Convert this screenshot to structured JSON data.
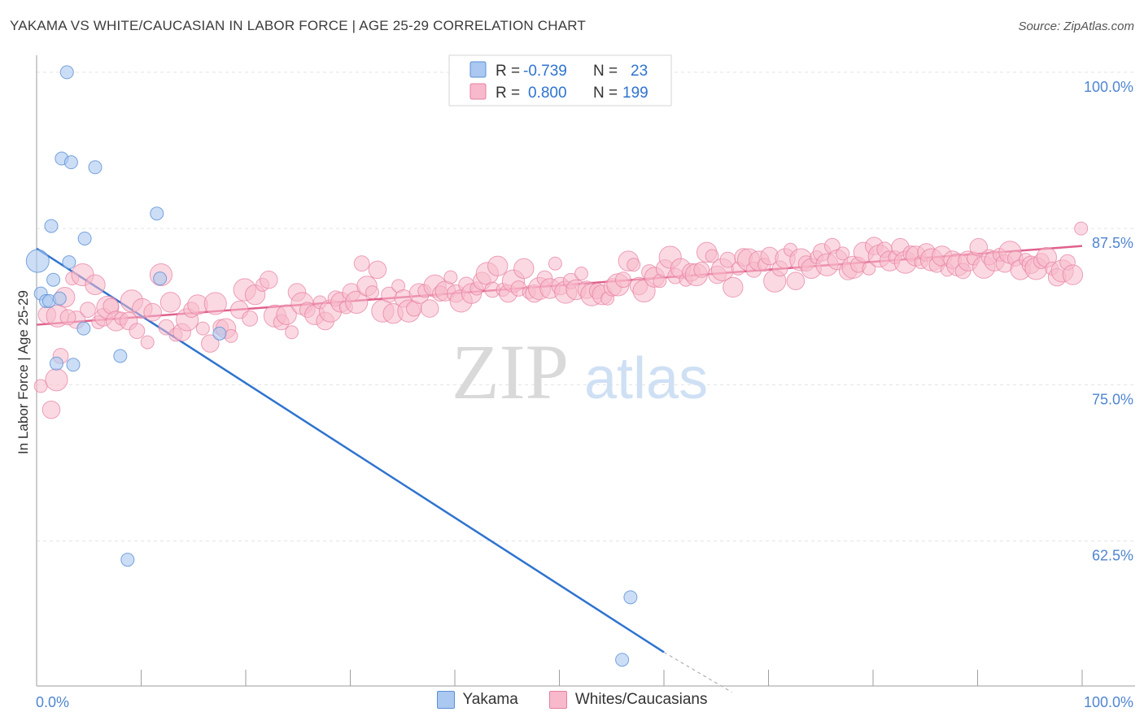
{
  "header": {
    "title": "YAKAMA VS WHITE/CAUCASIAN IN LABOR FORCE | AGE 25-29 CORRELATION CHART",
    "source": "Source: ZipAtlas.com"
  },
  "watermark": {
    "zip": "ZIP",
    "atlas": "atlas"
  },
  "stats_legend": {
    "rows": [
      {
        "r_label": "R =",
        "r_value": "-0.739",
        "n_label": "N =",
        "n_value": "23",
        "color": "#aac8f0",
        "border": "#5b8fd6"
      },
      {
        "r_label": "R =",
        "r_value": "0.800",
        "n_label": "N =",
        "n_value": "199",
        "color": "#f7b9cb",
        "border": "#e57ea0"
      }
    ]
  },
  "colors": {
    "yakama_fill": "#aac8f0",
    "yakama_stroke": "#5b8fd6",
    "yakama_line": "#2f73d0",
    "white_fill": "#f7b9cb",
    "white_stroke": "#e57ea0",
    "white_line": "#e0608c",
    "tick_label": "#4f86d1",
    "grid": "#e3e3e3"
  },
  "chart_data": {
    "type": "scatter",
    "title": "YAKAMA VS WHITE/CAUCASIAN IN LABOR FORCE | AGE 25-29 CORRELATION CHART",
    "xlabel": "",
    "ylabel": "In Labor Force | Age 25-29",
    "x_tick_labels": [
      "0.0%",
      "100.0%"
    ],
    "y_tick_labels": [
      "100.0%",
      "87.5%",
      "75.0%",
      "62.5%"
    ],
    "y_ticks": [
      100.0,
      87.5,
      75.0,
      62.5
    ],
    "xlim": [
      0,
      100
    ],
    "ylim": [
      50.9,
      101.1
    ],
    "grid": true,
    "legend_position": "bottom",
    "series": [
      {
        "name": "Yakama",
        "points": [
          [
            0.1,
            84.9
          ],
          [
            0.4,
            82.3
          ],
          [
            0.9,
            81.7
          ],
          [
            1.2,
            81.7
          ],
          [
            1.4,
            87.7
          ],
          [
            1.6,
            83.4
          ],
          [
            1.9,
            76.7
          ],
          [
            2.2,
            81.9
          ],
          [
            2.4,
            93.1
          ],
          [
            2.9,
            100.0
          ],
          [
            3.1,
            84.8
          ],
          [
            3.3,
            92.8
          ],
          [
            3.5,
            76.6
          ],
          [
            4.5,
            79.5
          ],
          [
            4.6,
            86.7
          ],
          [
            5.6,
            92.4
          ],
          [
            8.0,
            77.3
          ],
          [
            8.7,
            61.0
          ],
          [
            11.5,
            88.7
          ],
          [
            11.8,
            83.5
          ],
          [
            17.5,
            79.1
          ],
          [
            56.0,
            53.0
          ],
          [
            56.8,
            58.0
          ]
        ],
        "trend": {
          "x0": 0.0,
          "y0": 85.9,
          "x1": 60.0,
          "y1": 53.6,
          "dash_to_x": 66.5,
          "dash_to_y": 50.4
        }
      },
      {
        "name": "Whites/Caucasians",
        "points": [
          [
            0.4,
            74.9
          ],
          [
            1.4,
            73.0
          ],
          [
            1.9,
            75.4
          ],
          [
            2.3,
            77.3
          ],
          [
            2.7,
            82.0
          ],
          [
            3.4,
            83.5
          ],
          [
            3.8,
            80.2
          ],
          [
            4.4,
            83.8
          ],
          [
            4.9,
            81.0
          ],
          [
            5.6,
            83.0
          ],
          [
            5.9,
            80.0
          ],
          [
            6.4,
            80.4
          ],
          [
            6.8,
            81.2
          ],
          [
            7.1,
            81.3
          ],
          [
            7.6,
            80.1
          ],
          [
            8.1,
            80.3
          ],
          [
            8.8,
            80.1
          ],
          [
            9.1,
            81.7
          ],
          [
            9.6,
            79.3
          ],
          [
            10.1,
            81.1
          ],
          [
            10.6,
            78.4
          ],
          [
            11.1,
            80.8
          ],
          [
            11.9,
            83.8
          ],
          [
            12.4,
            79.6
          ],
          [
            12.8,
            81.6
          ],
          [
            13.3,
            79.0
          ],
          [
            13.9,
            79.2
          ],
          [
            14.4,
            80.2
          ],
          [
            14.8,
            81.0
          ],
          [
            15.4,
            81.4
          ],
          [
            15.9,
            79.5
          ],
          [
            16.6,
            78.3
          ],
          [
            17.1,
            81.5
          ],
          [
            17.6,
            79.6
          ],
          [
            18.1,
            79.5
          ],
          [
            18.6,
            78.9
          ],
          [
            19.4,
            81.0
          ],
          [
            19.9,
            82.6
          ],
          [
            20.4,
            80.3
          ],
          [
            20.9,
            82.2
          ],
          [
            21.6,
            83.0
          ],
          [
            22.2,
            83.4
          ],
          [
            22.8,
            80.5
          ],
          [
            23.4,
            80.0
          ],
          [
            23.9,
            80.6
          ],
          [
            24.4,
            79.2
          ],
          [
            24.9,
            82.4
          ],
          [
            25.4,
            81.5
          ],
          [
            25.9,
            81.0
          ],
          [
            26.6,
            80.6
          ],
          [
            27.1,
            81.6
          ],
          [
            27.6,
            80.1
          ],
          [
            28.1,
            80.9
          ],
          [
            28.6,
            81.9
          ],
          [
            29.1,
            81.6
          ],
          [
            29.6,
            81.2
          ],
          [
            30.1,
            82.4
          ],
          [
            30.6,
            81.6
          ],
          [
            31.1,
            84.7
          ],
          [
            31.6,
            82.9
          ],
          [
            32.1,
            82.4
          ],
          [
            32.6,
            84.2
          ],
          [
            33.1,
            80.9
          ],
          [
            33.7,
            82.2
          ],
          [
            34.1,
            80.7
          ],
          [
            34.6,
            82.9
          ],
          [
            35.1,
            81.9
          ],
          [
            35.6,
            80.9
          ],
          [
            36.1,
            81.1
          ],
          [
            36.6,
            82.3
          ],
          [
            37.1,
            82.5
          ],
          [
            37.6,
            81.1
          ],
          [
            38.1,
            82.9
          ],
          [
            38.6,
            82.3
          ],
          [
            39.1,
            82.5
          ],
          [
            39.6,
            83.6
          ],
          [
            40.1,
            82.3
          ],
          [
            40.6,
            81.7
          ],
          [
            41.1,
            83.0
          ],
          [
            41.6,
            82.3
          ],
          [
            42.1,
            82.7
          ],
          [
            42.6,
            83.3
          ],
          [
            43.1,
            83.9
          ],
          [
            43.6,
            82.6
          ],
          [
            44.1,
            84.5
          ],
          [
            44.6,
            82.6
          ],
          [
            45.1,
            82.3
          ],
          [
            45.6,
            83.3
          ],
          [
            46.1,
            82.7
          ],
          [
            46.6,
            84.3
          ],
          [
            47.1,
            82.4
          ],
          [
            47.6,
            82.3
          ],
          [
            48.1,
            82.7
          ],
          [
            48.6,
            83.5
          ],
          [
            49.1,
            82.7
          ],
          [
            49.6,
            84.7
          ],
          [
            50.1,
            82.9
          ],
          [
            50.6,
            82.4
          ],
          [
            51.1,
            83.3
          ],
          [
            51.6,
            82.6
          ],
          [
            52.1,
            83.9
          ],
          [
            52.6,
            82.6
          ],
          [
            53.1,
            82.2
          ],
          [
            53.6,
            82.5
          ],
          [
            54.1,
            82.2
          ],
          [
            54.6,
            81.9
          ],
          [
            55.1,
            82.8
          ],
          [
            55.6,
            83.0
          ],
          [
            56.1,
            83.4
          ],
          [
            56.6,
            84.9
          ],
          [
            57.1,
            84.6
          ],
          [
            57.6,
            82.9
          ],
          [
            58.1,
            82.5
          ],
          [
            58.6,
            84.0
          ],
          [
            59.1,
            83.6
          ],
          [
            59.6,
            83.3
          ],
          [
            60.1,
            84.3
          ],
          [
            60.6,
            85.2
          ],
          [
            61.1,
            83.7
          ],
          [
            61.6,
            84.3
          ],
          [
            62.1,
            83.4
          ],
          [
            62.6,
            84.0
          ],
          [
            63.1,
            83.8
          ],
          [
            63.6,
            84.2
          ],
          [
            64.1,
            85.6
          ],
          [
            64.6,
            85.3
          ],
          [
            65.1,
            83.8
          ],
          [
            65.6,
            84.2
          ],
          [
            66.1,
            85.0
          ],
          [
            66.6,
            82.8
          ],
          [
            67.1,
            84.3
          ],
          [
            67.6,
            85.2
          ],
          [
            68.1,
            85.0
          ],
          [
            68.6,
            84.2
          ],
          [
            69.1,
            84.9
          ],
          [
            69.6,
            84.6
          ],
          [
            70.1,
            85.3
          ],
          [
            70.6,
            83.3
          ],
          [
            71.1,
            84.3
          ],
          [
            71.6,
            85.1
          ],
          [
            72.1,
            85.8
          ],
          [
            72.6,
            83.3
          ],
          [
            73.1,
            85.0
          ],
          [
            73.6,
            84.7
          ],
          [
            74.1,
            84.3
          ],
          [
            74.6,
            85.2
          ],
          [
            75.1,
            85.6
          ],
          [
            75.6,
            84.6
          ],
          [
            76.1,
            86.1
          ],
          [
            76.6,
            85.0
          ],
          [
            77.1,
            85.5
          ],
          [
            77.6,
            84.1
          ],
          [
            78.1,
            84.4
          ],
          [
            78.6,
            84.6
          ],
          [
            79.1,
            85.6
          ],
          [
            79.6,
            84.3
          ],
          [
            80.1,
            86.1
          ],
          [
            80.6,
            85.3
          ],
          [
            81.1,
            85.8
          ],
          [
            81.6,
            84.9
          ],
          [
            82.1,
            85.2
          ],
          [
            82.6,
            86.0
          ],
          [
            83.1,
            84.8
          ],
          [
            83.6,
            85.5
          ],
          [
            84.1,
            85.3
          ],
          [
            84.6,
            84.8
          ],
          [
            85.1,
            85.6
          ],
          [
            85.6,
            85.0
          ],
          [
            86.1,
            84.6
          ],
          [
            86.6,
            85.3
          ],
          [
            87.1,
            84.2
          ],
          [
            87.6,
            85.0
          ],
          [
            88.1,
            84.6
          ],
          [
            88.6,
            84.1
          ],
          [
            89.1,
            84.9
          ],
          [
            89.6,
            85.1
          ],
          [
            90.1,
            86.0
          ],
          [
            90.6,
            84.4
          ],
          [
            91.1,
            85.2
          ],
          [
            91.6,
            84.9
          ],
          [
            92.1,
            85.4
          ],
          [
            92.6,
            84.7
          ],
          [
            93.1,
            85.6
          ],
          [
            93.6,
            85.1
          ],
          [
            94.1,
            84.2
          ],
          [
            94.6,
            85.0
          ],
          [
            95.1,
            84.6
          ],
          [
            95.6,
            84.3
          ],
          [
            96.1,
            84.9
          ],
          [
            96.6,
            85.2
          ],
          [
            97.1,
            84.3
          ],
          [
            97.6,
            83.6
          ],
          [
            98.1,
            84.1
          ],
          [
            98.6,
            84.8
          ],
          [
            99.1,
            83.8
          ],
          [
            99.9,
            87.5
          ],
          [
            1.0,
            80.6
          ],
          [
            2.0,
            80.5
          ],
          [
            3.0,
            80.4
          ]
        ],
        "trend": {
          "x0": 0.0,
          "y0": 79.8,
          "x1": 100.0,
          "y1": 86.1
        }
      }
    ]
  }
}
